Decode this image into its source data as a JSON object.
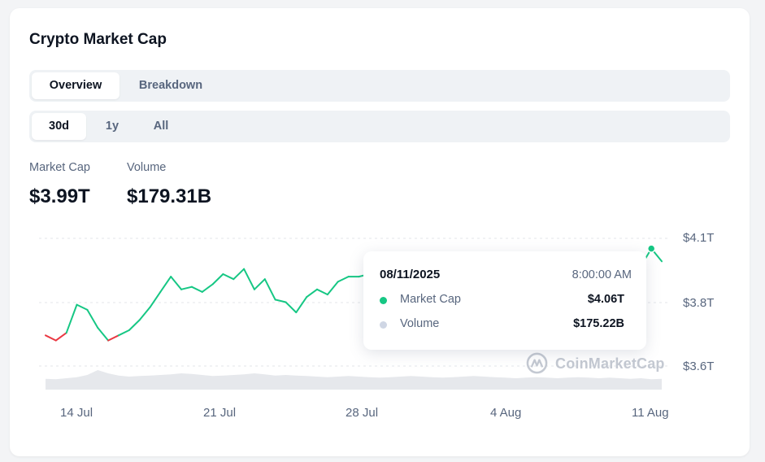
{
  "title": "Crypto Market Cap",
  "view_tabs": [
    {
      "label": "Overview",
      "active": true
    },
    {
      "label": "Breakdown",
      "active": false
    }
  ],
  "range_tabs": [
    {
      "label": "30d",
      "active": true
    },
    {
      "label": "1y",
      "active": false
    },
    {
      "label": "All",
      "active": false
    }
  ],
  "stats": {
    "market_cap_label": "Market Cap",
    "market_cap_value": "$3.99T",
    "volume_label": "Volume",
    "volume_value": "$179.31B"
  },
  "tooltip": {
    "date": "08/11/2025",
    "time": "8:00:00 AM",
    "market_cap_label": "Market Cap",
    "market_cap_value": "$4.06T",
    "volume_label": "Volume",
    "volume_value": "$175.22B"
  },
  "watermark": "CoinMarketCap",
  "colors": {
    "up": "#16c784",
    "down": "#ea3943",
    "volume_fill": "#e6e8ec",
    "muted": "#58667e"
  },
  "chart_data": {
    "type": "line",
    "y_tick_labels": [
      "$4.1T",
      "$3.8T",
      "$3.6T"
    ],
    "x_tick_labels": [
      "14 Jul",
      "21 Jul",
      "28 Jul",
      "4 Aug",
      "11 Aug"
    ],
    "grid": true,
    "series": [
      {
        "name": "Market Cap",
        "values": [
          3.72,
          3.7,
          3.73,
          3.84,
          3.82,
          3.75,
          3.7,
          3.72,
          3.74,
          3.78,
          3.83,
          3.89,
          3.95,
          3.9,
          3.91,
          3.89,
          3.92,
          3.96,
          3.94,
          3.98,
          3.9,
          3.94,
          3.86,
          3.85,
          3.81,
          3.87,
          3.9,
          3.88,
          3.93,
          3.95,
          3.95,
          3.96,
          3.97,
          3.96,
          3.94,
          3.93,
          3.95,
          3.97,
          3.98,
          3.99,
          4.0,
          4.01,
          4.0,
          3.99,
          3.96,
          3.88,
          3.73,
          3.67,
          3.71,
          3.74,
          3.76,
          3.79,
          3.82,
          3.85,
          3.88,
          3.91,
          3.95,
          3.99,
          4.06,
          4.01
        ]
      },
      {
        "name": "Volume",
        "values": [
          200,
          190,
          210,
          230,
          270,
          360,
          300,
          260,
          240,
          250,
          260,
          270,
          280,
          300,
          290,
          270,
          250,
          260,
          270,
          280,
          300,
          280,
          260,
          270,
          260,
          250,
          240,
          230,
          240,
          250,
          240,
          230,
          220,
          230,
          240,
          250,
          240,
          230,
          220,
          230,
          240,
          250,
          240,
          230,
          220,
          210,
          220,
          230,
          220,
          210,
          220,
          230,
          220,
          210,
          220,
          210,
          200,
          210,
          190,
          200
        ]
      }
    ]
  }
}
